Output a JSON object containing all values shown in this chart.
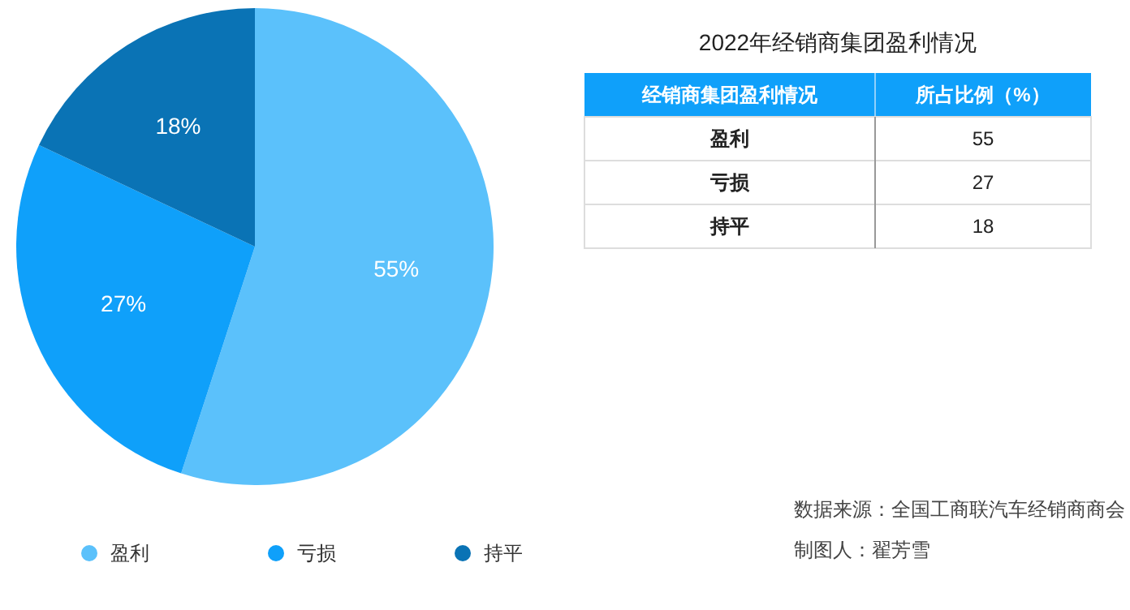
{
  "chart_data": [
    {
      "type": "pie",
      "categories": [
        "盈利",
        "亏损",
        "持平"
      ],
      "values": [
        55,
        27,
        18
      ],
      "colors": [
        "#5bc1fb",
        "#0fa0fa",
        "#0a73b5"
      ],
      "value_labels": [
        "55%",
        "27%",
        "18%"
      ],
      "legend": "bottom",
      "annotations": [
        "数据来源：全国工商联汽车经销商商会",
        "制图人：翟芳雪"
      ]
    },
    {
      "type": "other",
      "title": "2022年经销商集团盈利情况",
      "xlabel": "经销商集团盈利情况",
      "ylabel": "所占比例（%）",
      "categories": [
        "盈利",
        "亏损",
        "持平"
      ],
      "values": [
        55,
        27,
        18
      ],
      "data_labels": true
    }
  ]
}
